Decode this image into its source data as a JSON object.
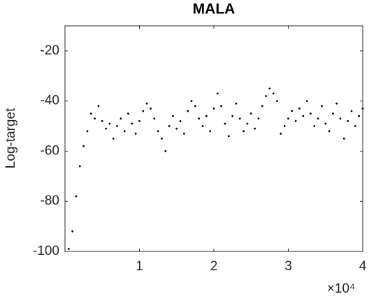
{
  "chart_data": {
    "type": "scatter",
    "title": "MALA",
    "ylabel": "Log-target",
    "x_exponent_label": "×10⁴",
    "x": [
      500,
      1000,
      1500,
      2000,
      2500,
      3000,
      3500,
      4000,
      4500,
      5000,
      5500,
      6000,
      6500,
      7000,
      7500,
      8000,
      8500,
      9000,
      9500,
      10000,
      10500,
      11000,
      11500,
      12000,
      12500,
      13000,
      13500,
      14000,
      14500,
      15000,
      15500,
      16000,
      16500,
      17000,
      17500,
      18000,
      18500,
      19000,
      19500,
      20000,
      20500,
      21000,
      21500,
      22000,
      22500,
      23000,
      23500,
      24000,
      24500,
      25000,
      25500,
      26000,
      26500,
      27000,
      27500,
      28000,
      28500,
      29000,
      29500,
      30000,
      30500,
      31000,
      31500,
      32000,
      32500,
      33000,
      33500,
      34000,
      34500,
      35000,
      35500,
      36000,
      36500,
      37000,
      37500,
      38000,
      38500,
      39000,
      39500,
      40000
    ],
    "values": [
      -99,
      -92,
      -78,
      -66,
      -58,
      -52,
      -45,
      -47,
      -42,
      -48,
      -51,
      -49,
      -55,
      -50,
      -47,
      -52,
      -45,
      -49,
      -53,
      -48,
      -44,
      -41,
      -43,
      -47,
      -52,
      -55,
      -60,
      -50,
      -46,
      -51,
      -48,
      -53,
      -44,
      -40,
      -42,
      -47,
      -50,
      -46,
      -52,
      -43,
      -37,
      -42,
      -49,
      -54,
      -46,
      -41,
      -47,
      -52,
      -49,
      -45,
      -51,
      -47,
      -42,
      -38,
      -35,
      -37,
      -40,
      -53,
      -50,
      -47,
      -44,
      -48,
      -43,
      -46,
      -40,
      -45,
      -50,
      -47,
      -42,
      -49,
      -52,
      -45,
      -41,
      -47,
      -55,
      -48,
      -44,
      -50,
      -46,
      -43
    ],
    "color": "#000000",
    "xlim": [
      0,
      40000
    ],
    "xticks": [
      {
        "value": 10000,
        "label": "1"
      },
      {
        "value": 20000,
        "label": "2"
      },
      {
        "value": 30000,
        "label": "3"
      },
      {
        "value": 40000,
        "label": "4"
      }
    ],
    "ylim": [
      -100,
      -10
    ],
    "yticks": [
      -100,
      -80,
      -60,
      -40,
      -20
    ],
    "grid": false
  }
}
